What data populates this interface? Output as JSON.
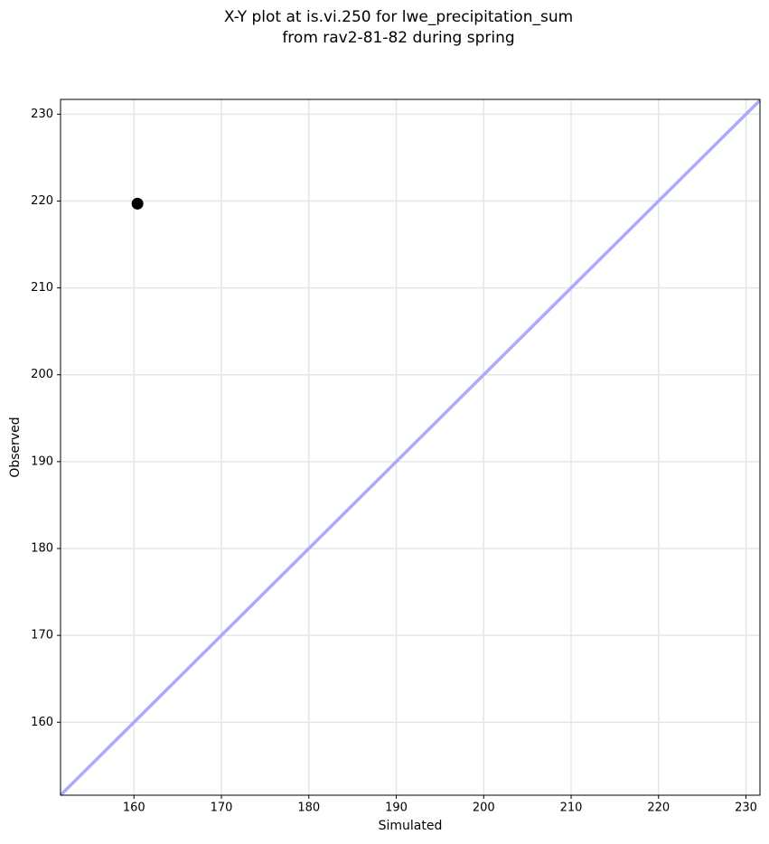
{
  "chart_data": {
    "type": "scatter",
    "title": [
      "X-Y plot at is.vi.250 for lwe_precipitation_sum",
      "from rav2-81-82 during spring"
    ],
    "x_label": "Simulated",
    "y_label": "Observed",
    "x": [
      160.4
    ],
    "values": [
      219.7
    ],
    "color": "#000000",
    "identity_line_color": "#aaaaff",
    "xlim": [
      151.6,
      231.6
    ],
    "ylim": [
      151.6,
      231.7
    ],
    "xticks": [
      160,
      170,
      180,
      190,
      200,
      210,
      220,
      230
    ],
    "yticks": [
      160,
      170,
      180,
      190,
      200,
      210,
      220,
      230
    ],
    "grid": true
  }
}
